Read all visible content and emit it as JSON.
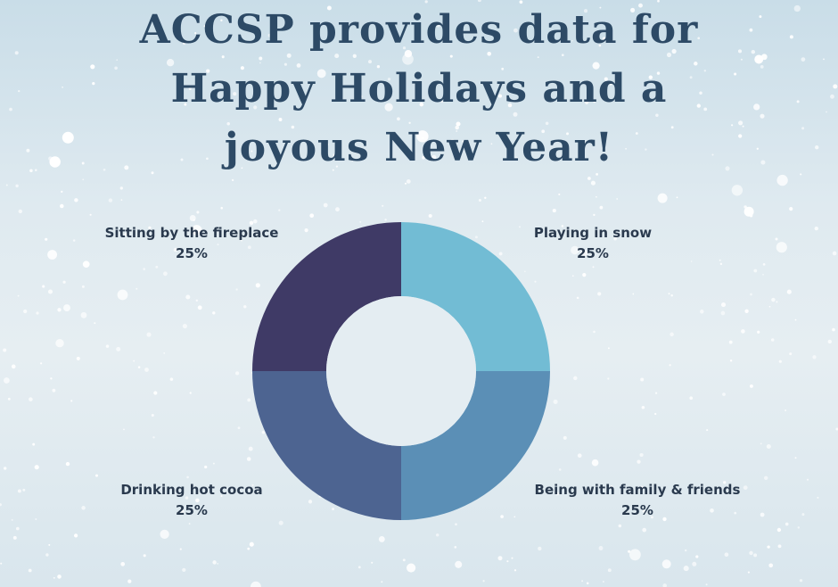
{
  "title": {
    "line1": "ACCSP provides data for",
    "line2": "Happy Holidays and a",
    "line3": "joyous New Year!"
  },
  "colors": {
    "background": "#dde9ef",
    "title": "#2d4a66",
    "label": "#2a3a4e",
    "slice_playing": "#72bcd4",
    "slice_family": "#5b8fb6",
    "slice_cocoa": "#4d6491",
    "slice_fireplace": "#3f3a66"
  },
  "chart_data": {
    "type": "pie",
    "donut": true,
    "legend": "none",
    "title": "ACCSP provides data for Happy Holidays and a joyous New Year!",
    "slices": [
      {
        "label": "Playing in snow",
        "value": 25,
        "value_label": "25%",
        "color": "#72bcd4"
      },
      {
        "label": "Being with family & friends",
        "value": 25,
        "value_label": "25%",
        "color": "#5b8fb6"
      },
      {
        "label": "Drinking hot cocoa",
        "value": 25,
        "value_label": "25%",
        "color": "#4d6491"
      },
      {
        "label": "Sitting by the fireplace",
        "value": 25,
        "value_label": "25%",
        "color": "#3f3a66"
      }
    ]
  }
}
